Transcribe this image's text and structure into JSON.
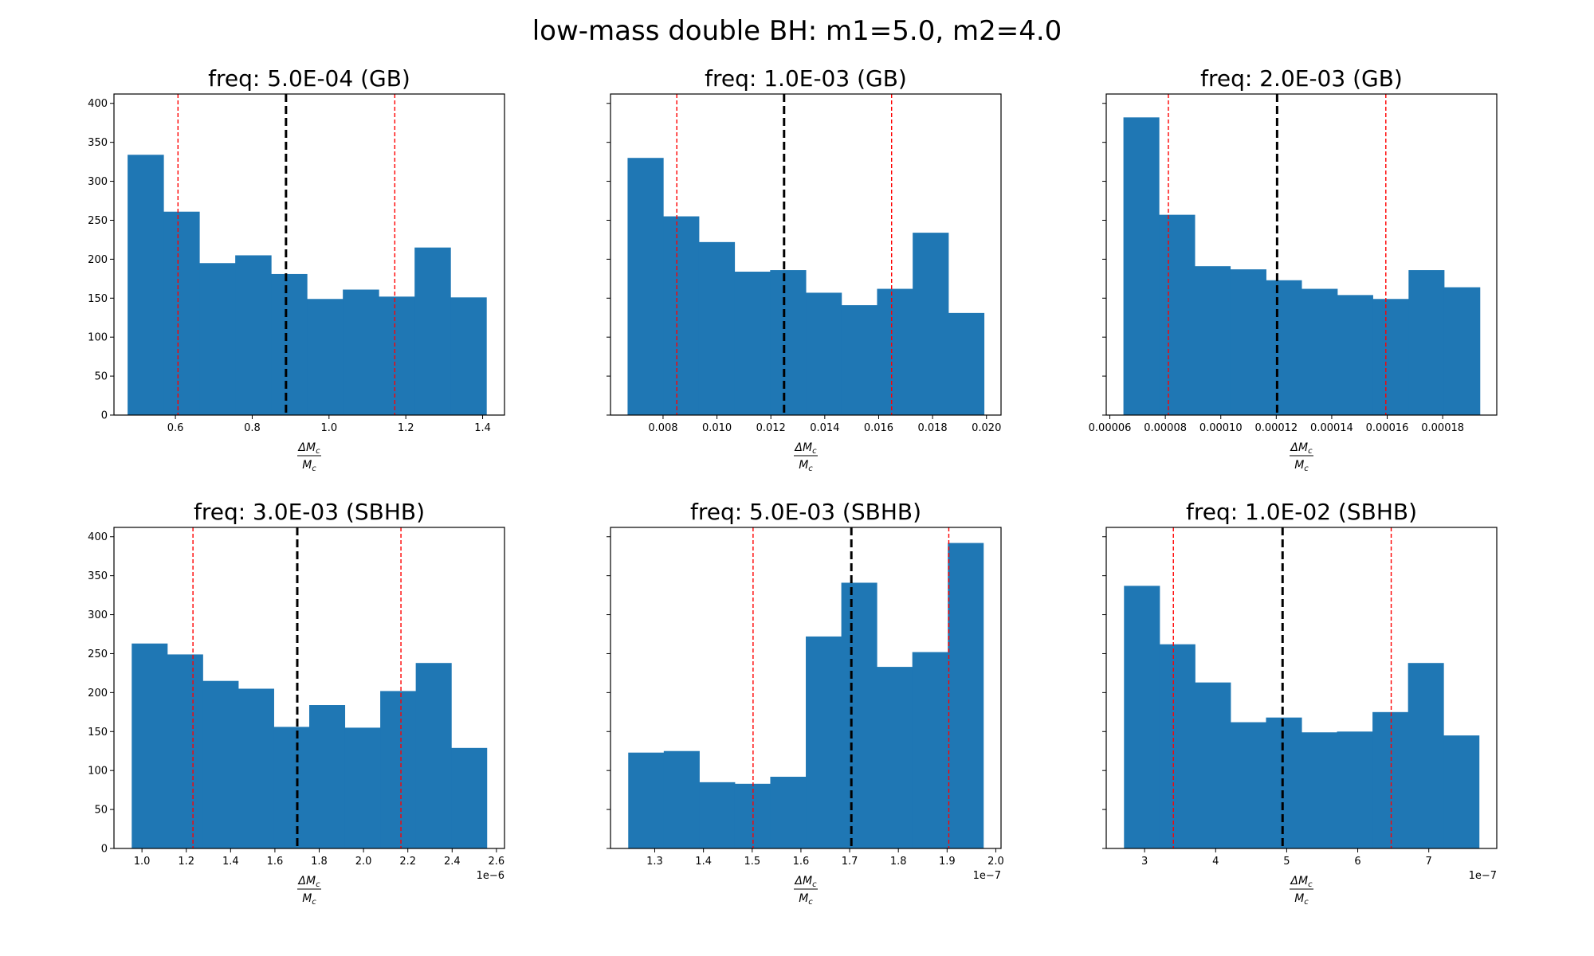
{
  "figure": {
    "suptitle": "low-mass double BH: m1=5.0, m2=4.0"
  },
  "colors": {
    "bar": "#1f77b4",
    "median_line": "#000000",
    "ci_line": "#ff0000",
    "frame": "#000000"
  },
  "chart_data": [
    {
      "type": "bar",
      "subtype": "histogram",
      "title": "freq: 5.0E-04 (GB)",
      "xlabel_numerator": "ΔM",
      "xlabel_denominator": "M",
      "xlabel_subscript": "c",
      "ylabel": "",
      "offset_text": "",
      "bin_edges": [
        0.4755,
        0.5689,
        0.6623,
        0.7558,
        0.8492,
        0.9426,
        1.036,
        1.1294,
        1.2229,
        1.3163,
        1.4097
      ],
      "counts": [
        334,
        261,
        195,
        205,
        181,
        149,
        161,
        152,
        215,
        151
      ],
      "xlim": [
        0.44,
        1.457
      ],
      "ylim": [
        0,
        412
      ],
      "xticks": [
        0.6,
        0.8,
        1.0,
        1.2,
        1.4
      ],
      "xtick_labels": [
        "0.6",
        "0.8",
        "1.0",
        "1.2",
        "1.4"
      ],
      "yticks": [
        0,
        50,
        100,
        150,
        200,
        250,
        300,
        350,
        400
      ],
      "ytick_labels": [
        "0",
        "50",
        "100",
        "150",
        "200",
        "250",
        "300",
        "350",
        "400"
      ],
      "show_ytick_labels": true,
      "median": 0.888,
      "ci_low": 0.6067,
      "ci_high": 1.1713,
      "grid": false
    },
    {
      "type": "bar",
      "subtype": "histogram",
      "title": "freq: 1.0E-03 (GB)",
      "xlabel_numerator": "ΔM",
      "xlabel_denominator": "M",
      "xlabel_subscript": "c",
      "ylabel": "",
      "offset_text": "",
      "bin_edges": [
        0.006684,
        0.008006,
        0.009329,
        0.010651,
        0.011973,
        0.013296,
        0.014618,
        0.01594,
        0.017262,
        0.018585,
        0.019907
      ],
      "counts": [
        330,
        255,
        222,
        184,
        186,
        157,
        141,
        162,
        234,
        131
      ],
      "xlim": [
        0.00605,
        0.02054
      ],
      "ylim": [
        0,
        412
      ],
      "xticks": [
        0.008,
        0.01,
        0.012,
        0.014,
        0.016,
        0.018,
        0.02
      ],
      "xtick_labels": [
        "0.008",
        "0.010",
        "0.012",
        "0.014",
        "0.016",
        "0.018",
        "0.020"
      ],
      "yticks": [
        0,
        50,
        100,
        150,
        200,
        250,
        300,
        350,
        400
      ],
      "ytick_labels": [
        "0",
        "50",
        "100",
        "150",
        "200",
        "250",
        "300",
        "350",
        "400"
      ],
      "show_ytick_labels": false,
      "median": 0.01249,
      "ci_low": 0.00851,
      "ci_high": 0.01648,
      "grid": false
    },
    {
      "type": "bar",
      "subtype": "histogram",
      "title": "freq: 2.0E-03 (GB)",
      "xlabel_numerator": "ΔM",
      "xlabel_denominator": "M",
      "xlabel_subscript": "c",
      "ylabel": "",
      "offset_text": "",
      "bin_edges": [
        6.49e-05,
        7.77e-05,
        9.06e-05,
        0.0001034,
        0.0001163,
        0.0001291,
        0.000142,
        0.0001548,
        0.0001677,
        0.0001805,
        0.0001934
      ],
      "counts": [
        382,
        257,
        191,
        187,
        173,
        162,
        154,
        149,
        186,
        164
      ],
      "xlim": [
        5.87e-05,
        0.0001995
      ],
      "ylim": [
        0,
        412
      ],
      "xticks": [
        6e-05,
        8e-05,
        0.0001,
        0.00012,
        0.00014,
        0.00016,
        0.00018
      ],
      "xtick_labels": [
        "0.00006",
        "0.00008",
        "0.00010",
        "0.00012",
        "0.00014",
        "0.00016",
        "0.00018"
      ],
      "yticks": [
        0,
        50,
        100,
        150,
        200,
        250,
        300,
        350,
        400
      ],
      "ytick_labels": [
        "0",
        "50",
        "100",
        "150",
        "200",
        "250",
        "300",
        "350",
        "400"
      ],
      "show_ytick_labels": false,
      "median": 0.0001203,
      "ci_low": 8.11e-05,
      "ci_high": 0.0001595,
      "grid": false
    },
    {
      "type": "bar",
      "subtype": "histogram",
      "title": "freq: 3.0E-03 (SBHB)",
      "xlabel_numerator": "ΔM",
      "xlabel_denominator": "M",
      "xlabel_subscript": "c",
      "ylabel": "",
      "offset_text": "1e−6",
      "bin_edges": [
        0.9537,
        1.114,
        1.2742,
        1.4345,
        1.5948,
        1.755,
        1.9153,
        2.0755,
        2.2358,
        2.3961,
        2.5563
      ],
      "counts": [
        263,
        249,
        215,
        205,
        156,
        184,
        155,
        202,
        238,
        129
      ],
      "xlim": [
        0.8736,
        2.6364
      ],
      "ylim": [
        0,
        412
      ],
      "xticks": [
        1.0,
        1.2,
        1.4,
        1.6,
        1.8,
        2.0,
        2.2,
        2.4,
        2.6
      ],
      "xtick_labels": [
        "1.0",
        "1.2",
        "1.4",
        "1.6",
        "1.8",
        "2.0",
        "2.2",
        "2.4",
        "2.6"
      ],
      "yticks": [
        0,
        50,
        100,
        150,
        200,
        250,
        300,
        350,
        400
      ],
      "ytick_labels": [
        "0",
        "50",
        "100",
        "150",
        "200",
        "250",
        "300",
        "350",
        "400"
      ],
      "show_ytick_labels": true,
      "median": 1.701,
      "ci_low": 1.2302,
      "ci_high": 2.169,
      "grid": false
    },
    {
      "type": "bar",
      "subtype": "histogram",
      "title": "freq: 5.0E-03 (SBHB)",
      "xlabel_numerator": "ΔM",
      "xlabel_denominator": "M",
      "xlabel_subscript": "c",
      "ylabel": "",
      "offset_text": "1e−7",
      "bin_edges": [
        1.2456,
        1.3185,
        1.3914,
        1.4642,
        1.5371,
        1.61,
        1.6829,
        1.7557,
        1.8286,
        1.9015,
        1.9743
      ],
      "counts": [
        123,
        125,
        85,
        83,
        92,
        272,
        341,
        233,
        252,
        392
      ],
      "xlim": [
        1.2092,
        2.0107
      ],
      "ylim": [
        0,
        412
      ],
      "xticks": [
        1.3,
        1.4,
        1.5,
        1.6,
        1.7,
        1.8,
        1.9,
        2.0
      ],
      "xtick_labels": [
        "1.3",
        "1.4",
        "1.5",
        "1.6",
        "1.7",
        "1.8",
        "1.9",
        "2.0"
      ],
      "yticks": [
        0,
        50,
        100,
        150,
        200,
        250,
        300,
        350,
        400
      ],
      "ytick_labels": [
        "0",
        "50",
        "100",
        "150",
        "200",
        "250",
        "300",
        "350",
        "400"
      ],
      "show_ytick_labels": false,
      "median": 1.7035,
      "ci_low": 1.5018,
      "ci_high": 1.9035,
      "grid": false
    },
    {
      "type": "bar",
      "subtype": "histogram",
      "title": "freq: 1.0E-02 (SBHB)",
      "xlabel_numerator": "ΔM",
      "xlabel_denominator": "M",
      "xlabel_subscript": "c",
      "ylabel": "",
      "offset_text": "1e−7",
      "bin_edges": [
        2.71,
        3.21,
        3.709,
        4.209,
        4.709,
        5.209,
        5.708,
        6.208,
        6.708,
        7.207,
        7.707
      ],
      "counts": [
        337,
        262,
        213,
        162,
        168,
        149,
        150,
        175,
        238,
        145
      ],
      "xlim": [
        2.46,
        7.957
      ],
      "ylim": [
        0,
        412
      ],
      "xticks": [
        3,
        4,
        5,
        6,
        7
      ],
      "xtick_labels": [
        "3",
        "4",
        "5",
        "6",
        "7"
      ],
      "yticks": [
        0,
        50,
        100,
        150,
        200,
        250,
        300,
        350,
        400
      ],
      "ytick_labels": [
        "0",
        "50",
        "100",
        "150",
        "200",
        "250",
        "300",
        "350",
        "400"
      ],
      "show_ytick_labels": false,
      "median": 4.942,
      "ci_low": 3.405,
      "ci_high": 6.471,
      "grid": false
    }
  ]
}
